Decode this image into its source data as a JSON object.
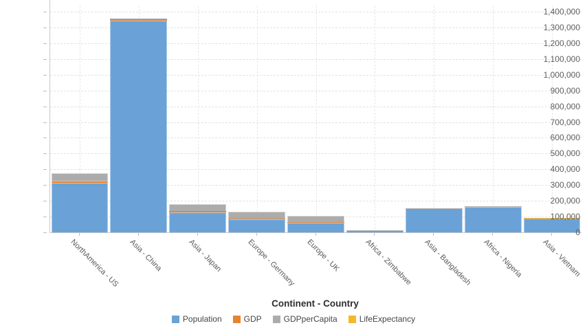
{
  "chart": {
    "xaxis_title_label": "Continent - Country"
  },
  "chart_data": {
    "type": "bar",
    "stacked": true,
    "title": "",
    "xlabel": "Continent - Country",
    "ylabel": "",
    "ylim": [
      0,
      1400000
    ],
    "ytick_step": 100000,
    "grid": true,
    "legend_position": "bottom",
    "categories": [
      "NorthAmerica - US",
      "Asia - China",
      "Asia - Japan",
      "Europe - Germany",
      "Europe - UK",
      "Africa - Zimbabwe",
      "Asia - Bangladesh",
      "Africa - Nigeria",
      "Asia - Vietnam"
    ],
    "series": [
      {
        "name": "Population",
        "color": "#6AA2D8",
        "values": [
          313085,
          1344130,
          127817,
          81726,
          62744,
          12754,
          150494,
          162471,
          87840
        ]
      },
      {
        "name": "GDP",
        "color": "#E8842F",
        "values": [
          15094,
          7298,
          5867,
          3601,
          2445,
          10,
          111,
          244,
          124
        ]
      },
      {
        "name": "GDPperCapita",
        "color": "#ACACAC",
        "values": [
          48112,
          5445,
          45903,
          44060,
          38974,
          776,
          735,
          1502,
          1407
        ]
      },
      {
        "name": "LifeExpectancy",
        "color": "#F5B82D",
        "values": [
          78.6,
          73.5,
          82.6,
          80.8,
          80.4,
          51.9,
          68.9,
          51.9,
          75.2
        ]
      }
    ]
  }
}
